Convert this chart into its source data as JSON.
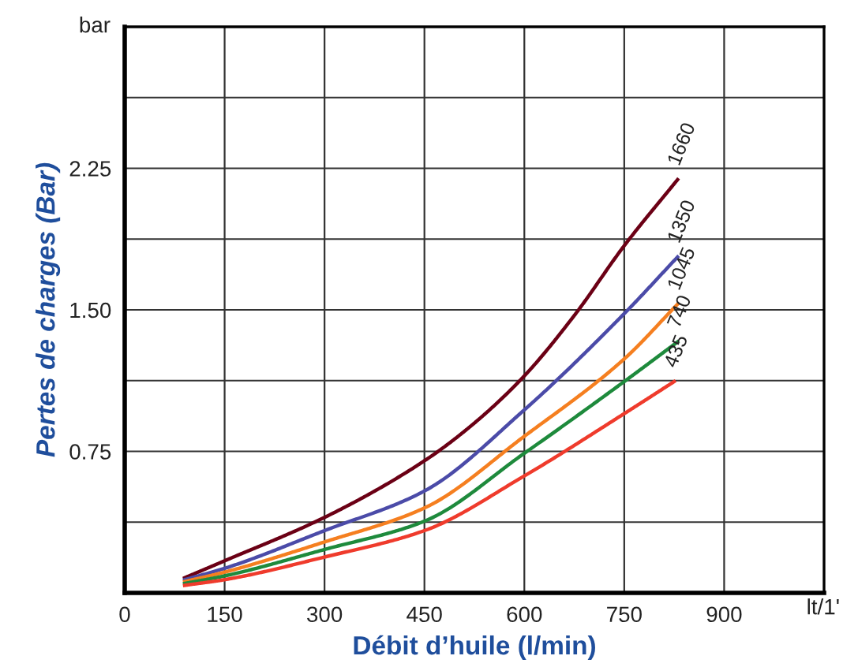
{
  "chart_data": {
    "type": "line",
    "xlabel": "Débit d’huile (l/min)",
    "ylabel": "Pertes de charges (Bar)",
    "xlim": [
      0,
      1050
    ],
    "ylim": [
      0,
      3.0
    ],
    "annotations": [
      "bar",
      "lt/1'"
    ],
    "xticks": [
      0,
      150,
      300,
      450,
      600,
      750,
      900,
      {
        "value": 1050,
        "label": null
      }
    ],
    "yticks": [
      {
        "value": 0.375,
        "label": null
      },
      0.75,
      {
        "value": 1.125,
        "label": null
      },
      {
        "value": 1.5,
        "label": "1.50"
      },
      {
        "value": 1.875,
        "label": null
      },
      2.25,
      {
        "value": 2.625,
        "label": null
      },
      {
        "value": 3.0,
        "label": null
      }
    ],
    "grid": true,
    "legend": false,
    "marker": "none",
    "line_style": "solid",
    "series": [
      {
        "name": "1660",
        "color": "#6b0015",
        "x": [
          90,
          150,
          300,
          450,
          525,
          600,
          675,
          750,
          830
        ],
        "values": [
          0.08,
          0.17,
          0.4,
          0.7,
          0.9,
          1.15,
          1.47,
          1.84,
          2.19
        ]
      },
      {
        "name": "1350",
        "color": "#4b4ba8",
        "x": [
          90,
          150,
          300,
          450,
          600,
          750,
          830
        ],
        "values": [
          0.07,
          0.13,
          0.33,
          0.54,
          0.97,
          1.48,
          1.78
        ]
      },
      {
        "name": "1045",
        "color": "#f57f20",
        "x": [
          90,
          150,
          300,
          450,
          600,
          750,
          830
        ],
        "values": [
          0.06,
          0.11,
          0.27,
          0.45,
          0.83,
          1.24,
          1.53
        ]
      },
      {
        "name": "740",
        "color": "#1e8a3c",
        "x": [
          90,
          150,
          300,
          450,
          600,
          750,
          830
        ],
        "values": [
          0.05,
          0.09,
          0.23,
          0.38,
          0.74,
          1.12,
          1.33
        ]
      },
      {
        "name": "435",
        "color": "#ef3b2c",
        "x": [
          90,
          150,
          300,
          450,
          600,
          750,
          825
        ],
        "values": [
          0.04,
          0.07,
          0.19,
          0.33,
          0.62,
          0.95,
          1.12
        ]
      }
    ]
  }
}
